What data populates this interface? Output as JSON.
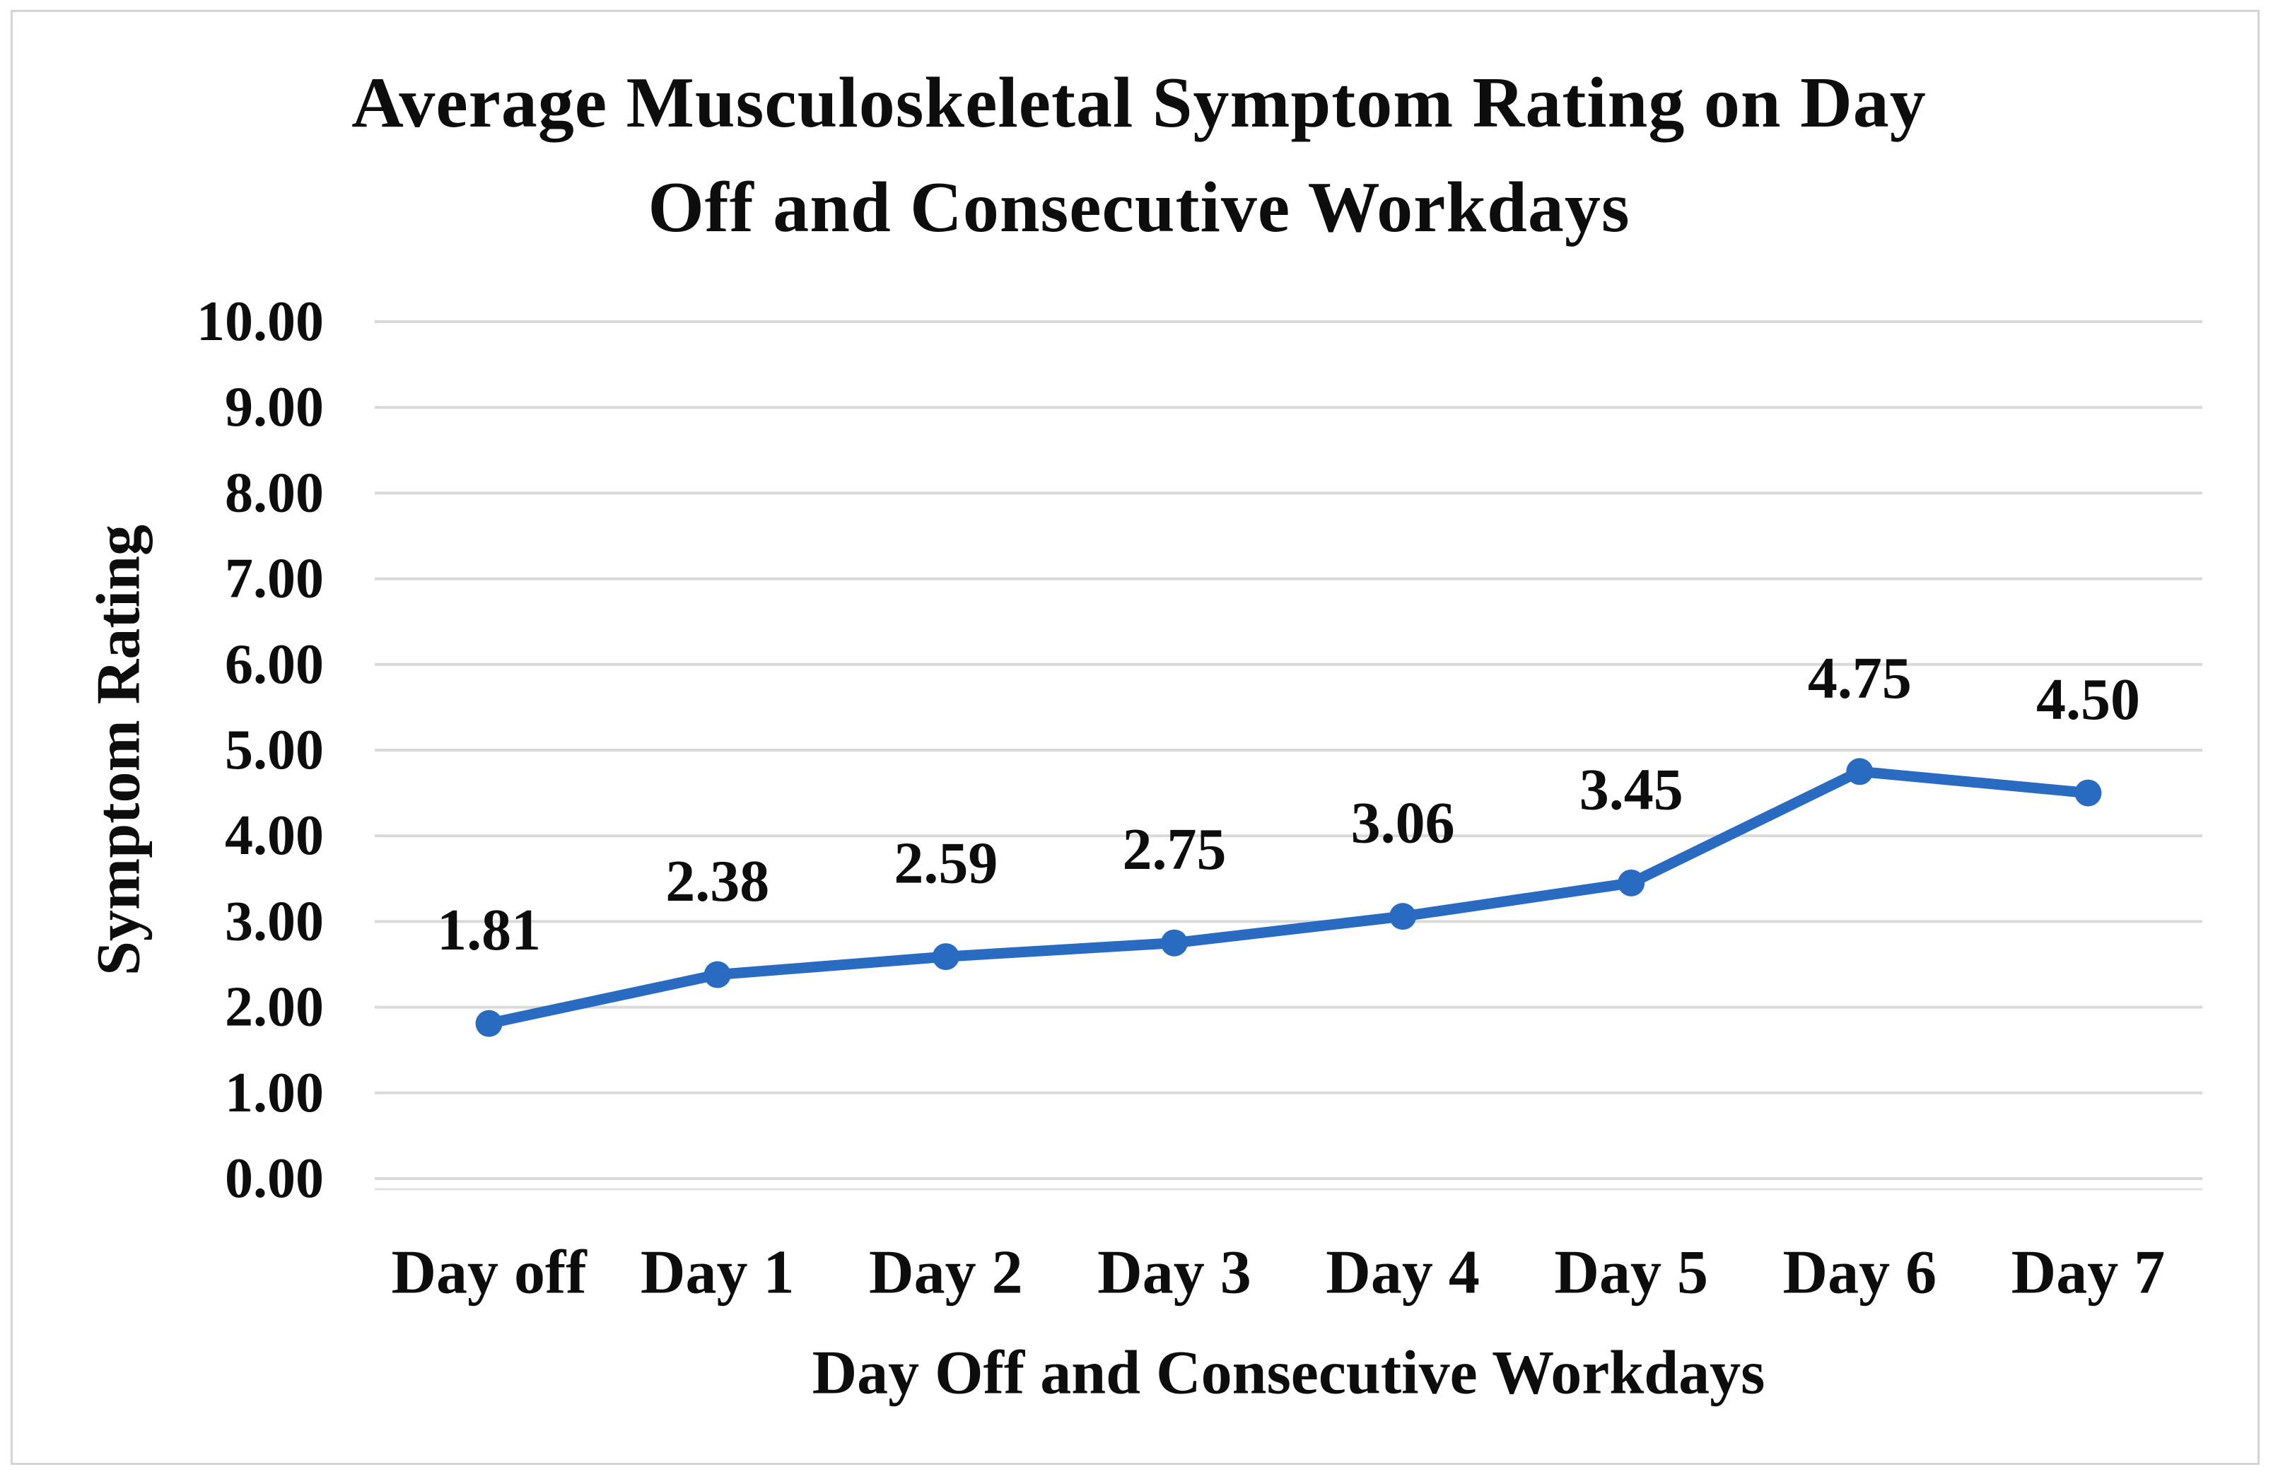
{
  "figure": {
    "title": "Average Musculoskeletal Symptom Rating on Day Off and Consecutive Workdays",
    "title_lines": [
      "Average Musculoskeletal Symptom Rating on Day",
      "Off and Consecutive Workdays"
    ]
  },
  "chart_data": {
    "type": "line",
    "title": "Average Musculoskeletal Symptom Rating on Day Off and Consecutive Workdays",
    "xlabel": "Day Off and Consecutive Workdays",
    "ylabel": "Symptom Rating",
    "categories": [
      "Day off",
      "Day 1",
      "Day 2",
      "Day 3",
      "Day 4",
      "Day 5",
      "Day 6",
      "Day 7"
    ],
    "values": [
      1.81,
      2.38,
      2.59,
      2.75,
      3.06,
      3.45,
      4.75,
      4.5
    ],
    "data_labels": [
      "1.81",
      "2.38",
      "2.59",
      "2.75",
      "3.06",
      "3.45",
      "4.75",
      "4.50"
    ],
    "ytick_labels": [
      "0.00",
      "1.00",
      "2.00",
      "3.00",
      "4.00",
      "5.00",
      "6.00",
      "7.00",
      "8.00",
      "9.00",
      "10.00"
    ],
    "ytick_values": [
      0,
      1,
      2,
      3,
      4,
      5,
      6,
      7,
      8,
      9,
      10
    ],
    "ylim": [
      0,
      10
    ],
    "grid": true,
    "legend_position": "none",
    "colors": {
      "line": "#2a6bc2",
      "marker": "#2a6bc2",
      "gridline": "#d9d9d9",
      "axis_line": "#e2e2e2",
      "text": "#0d0d0d",
      "frame": "#d5d5d5",
      "background": "#ffffff"
    }
  }
}
